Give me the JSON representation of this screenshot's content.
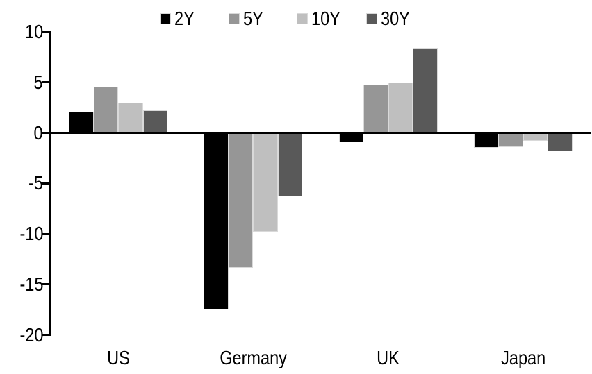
{
  "chart_data": {
    "type": "bar",
    "title": "",
    "categories": [
      "US",
      "Germany",
      "UK",
      "Japan"
    ],
    "series": [
      {
        "name": "2Y",
        "color": "#000000",
        "values": [
          2.1,
          -17.5,
          -0.9,
          -1.5
        ]
      },
      {
        "name": "5Y",
        "color": "#969696",
        "values": [
          4.6,
          -13.4,
          4.8,
          -1.4
        ]
      },
      {
        "name": "10Y",
        "color": "#BFBFBF",
        "values": [
          3.0,
          -9.8,
          5.0,
          -0.8
        ]
      },
      {
        "name": "30Y",
        "color": "#595959",
        "values": [
          2.2,
          -6.3,
          8.4,
          -1.8
        ]
      }
    ],
    "ylim": [
      -20,
      10
    ],
    "yticks": [
      10,
      5,
      0,
      -5,
      -10,
      -15,
      -20
    ],
    "xlabel": "",
    "ylabel": "",
    "legend_position": "top",
    "grid": false,
    "axis_color": "#000000",
    "bar_border_color": "#D9D9D9"
  }
}
